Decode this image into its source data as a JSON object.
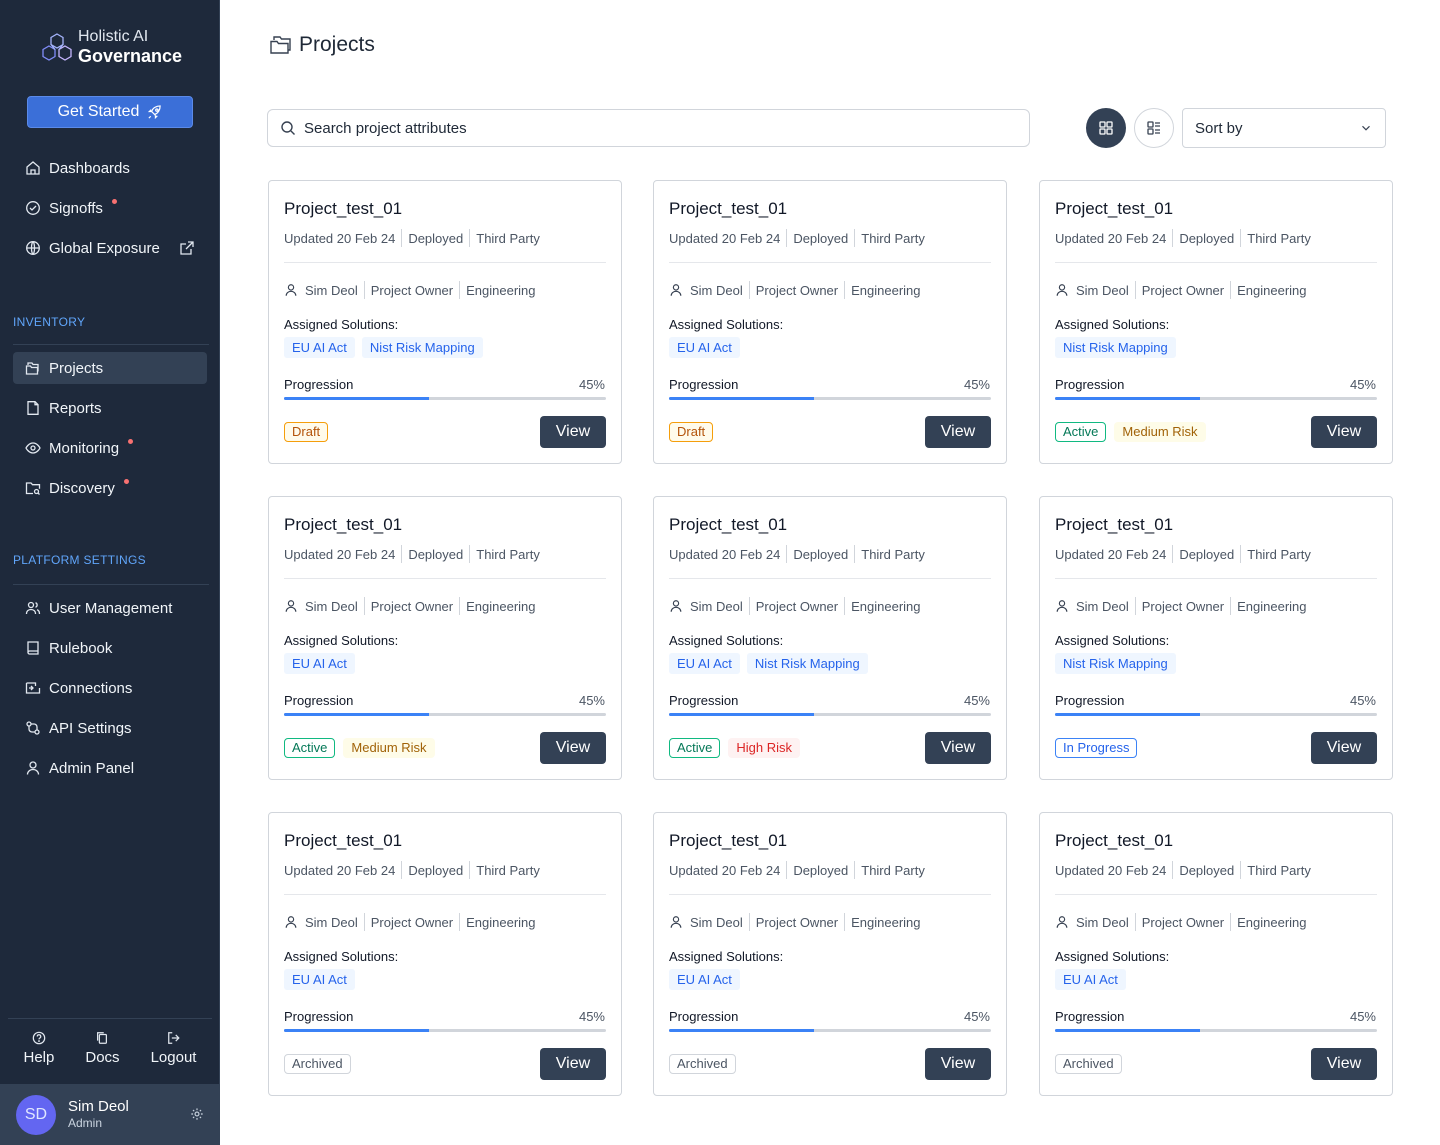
{
  "brand": {
    "line1": "Holistic AI",
    "line2": "Governance"
  },
  "sidebar": {
    "get_started": "Get Started",
    "top_items": [
      {
        "label": "Dashboards",
        "icon": "home-icon",
        "dot": false
      },
      {
        "label": "Signoffs",
        "icon": "check-circle-icon",
        "dot": true
      },
      {
        "label": "Global Exposure",
        "icon": "globe-icon",
        "dot": false
      }
    ],
    "inventory_label": "INVENTORY",
    "inventory_items": [
      {
        "label": "Projects",
        "icon": "folders-icon",
        "dot": false,
        "active": true
      },
      {
        "label": "Reports",
        "icon": "document-icon",
        "dot": false
      },
      {
        "label": "Monitoring",
        "icon": "eye-icon",
        "dot": true
      },
      {
        "label": "Discovery",
        "icon": "folder-search-icon",
        "dot": true
      }
    ],
    "platform_label": "PLATFORM SETTINGS",
    "platform_items": [
      {
        "label": "User Management",
        "icon": "users-icon"
      },
      {
        "label": "Rulebook",
        "icon": "book-icon"
      },
      {
        "label": "Connections",
        "icon": "connection-icon"
      },
      {
        "label": "API Settings",
        "icon": "api-icon"
      },
      {
        "label": "Admin Panel",
        "icon": "user-icon"
      }
    ],
    "bottom": {
      "help": "Help",
      "docs": "Docs",
      "logout": "Logout"
    },
    "user": {
      "initials": "SD",
      "name": "Sim Deol",
      "role": "Admin"
    }
  },
  "header": {
    "title": "Projects"
  },
  "search": {
    "placeholder": "Search project attributes"
  },
  "sort": {
    "label": "Sort by"
  },
  "colors": {
    "sidebar_bg": "#1e293b",
    "accent": "#3b6fd8",
    "button_dark": "#334155",
    "progress": "#3b82f6"
  },
  "cards": [
    {
      "title": "Project_test_01",
      "updated": "Updated 20 Feb 24",
      "stage": "Deployed",
      "party": "Third Party",
      "owner": "Sim Deol",
      "role": "Project Owner",
      "dept": "Engineering",
      "assigned_label": "Assigned Solutions:",
      "solutions": [
        "EU AI Act",
        "Nist Risk Mapping"
      ],
      "progress_label": "Progression",
      "progress_text": "45%",
      "progress": 0.45,
      "status": "Draft",
      "status_kind": "draft",
      "risk": "",
      "risk_kind": "",
      "view": "View"
    },
    {
      "title": "Project_test_01",
      "updated": "Updated 20 Feb 24",
      "stage": "Deployed",
      "party": "Third Party",
      "owner": "Sim Deol",
      "role": "Project Owner",
      "dept": "Engineering",
      "assigned_label": "Assigned Solutions:",
      "solutions": [
        "EU AI Act"
      ],
      "progress_label": "Progression",
      "progress_text": "45%",
      "progress": 0.45,
      "status": "Draft",
      "status_kind": "draft",
      "risk": "",
      "risk_kind": "",
      "view": "View"
    },
    {
      "title": "Project_test_01",
      "updated": "Updated 20 Feb 24",
      "stage": "Deployed",
      "party": "Third Party",
      "owner": "Sim Deol",
      "role": "Project Owner",
      "dept": "Engineering",
      "assigned_label": "Assigned Solutions:",
      "solutions": [
        "Nist Risk Mapping"
      ],
      "progress_label": "Progression",
      "progress_text": "45%",
      "progress": 0.45,
      "status": "Active",
      "status_kind": "active",
      "risk": "Medium Risk",
      "risk_kind": "medium",
      "view": "View"
    },
    {
      "title": "Project_test_01",
      "updated": "Updated 20 Feb 24",
      "stage": "Deployed",
      "party": "Third Party",
      "owner": "Sim Deol",
      "role": "Project Owner",
      "dept": "Engineering",
      "assigned_label": "Assigned Solutions:",
      "solutions": [
        "EU AI Act"
      ],
      "progress_label": "Progression",
      "progress_text": "45%",
      "progress": 0.45,
      "status": "Active",
      "status_kind": "active",
      "risk": "Medium Risk",
      "risk_kind": "medium",
      "view": "View"
    },
    {
      "title": "Project_test_01",
      "updated": "Updated 20 Feb 24",
      "stage": "Deployed",
      "party": "Third Party",
      "owner": "Sim Deol",
      "role": "Project Owner",
      "dept": "Engineering",
      "assigned_label": "Assigned Solutions:",
      "solutions": [
        "EU AI Act",
        "Nist Risk Mapping"
      ],
      "progress_label": "Progression",
      "progress_text": "45%",
      "progress": 0.45,
      "status": "Active",
      "status_kind": "active",
      "risk": "High Risk",
      "risk_kind": "high",
      "view": "View"
    },
    {
      "title": "Project_test_01",
      "updated": "Updated 20 Feb 24",
      "stage": "Deployed",
      "party": "Third Party",
      "owner": "Sim Deol",
      "role": "Project Owner",
      "dept": "Engineering",
      "assigned_label": "Assigned Solutions:",
      "solutions": [
        "Nist Risk Mapping"
      ],
      "progress_label": "Progression",
      "progress_text": "45%",
      "progress": 0.45,
      "status": "In Progress",
      "status_kind": "inprogress",
      "risk": "",
      "risk_kind": "",
      "view": "View"
    },
    {
      "title": "Project_test_01",
      "updated": "Updated 20 Feb 24",
      "stage": "Deployed",
      "party": "Third Party",
      "owner": "Sim Deol",
      "role": "Project Owner",
      "dept": "Engineering",
      "assigned_label": "Assigned Solutions:",
      "solutions": [
        "EU AI Act"
      ],
      "progress_label": "Progression",
      "progress_text": "45%",
      "progress": 0.45,
      "status": "Archived",
      "status_kind": "archived",
      "risk": "",
      "risk_kind": "",
      "view": "View"
    },
    {
      "title": "Project_test_01",
      "updated": "Updated 20 Feb 24",
      "stage": "Deployed",
      "party": "Third Party",
      "owner": "Sim Deol",
      "role": "Project Owner",
      "dept": "Engineering",
      "assigned_label": "Assigned Solutions:",
      "solutions": [
        "EU AI Act"
      ],
      "progress_label": "Progression",
      "progress_text": "45%",
      "progress": 0.45,
      "status": "Archived",
      "status_kind": "archived",
      "risk": "",
      "risk_kind": "",
      "view": "View"
    },
    {
      "title": "Project_test_01",
      "updated": "Updated 20 Feb 24",
      "stage": "Deployed",
      "party": "Third Party",
      "owner": "Sim Deol",
      "role": "Project Owner",
      "dept": "Engineering",
      "assigned_label": "Assigned Solutions:",
      "solutions": [
        "EU AI Act"
      ],
      "progress_label": "Progression",
      "progress_text": "45%",
      "progress": 0.45,
      "status": "Archived",
      "status_kind": "archived",
      "risk": "",
      "risk_kind": "",
      "view": "View"
    }
  ]
}
